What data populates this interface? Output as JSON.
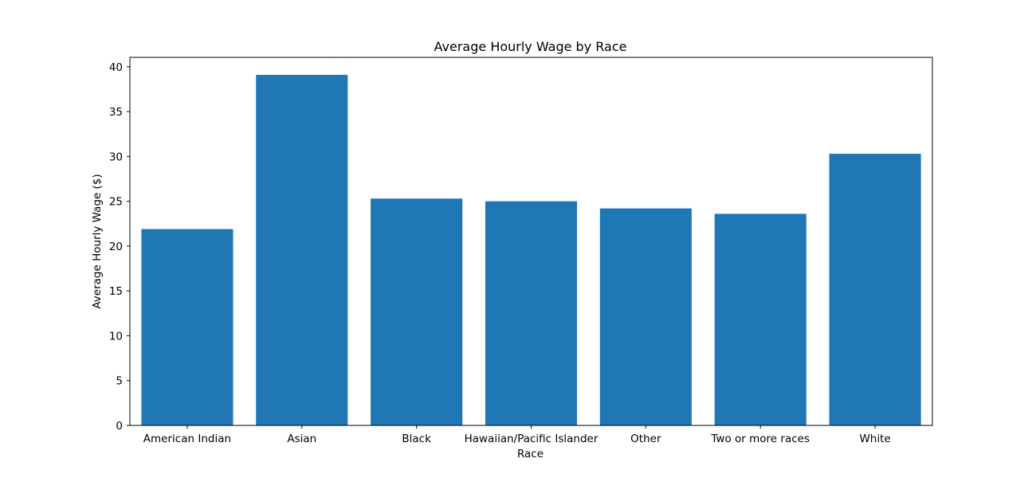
{
  "chart_data": {
    "type": "bar",
    "title": "Average Hourly Wage by Race",
    "xlabel": "Race",
    "ylabel": "Average Hourly Wage ($)",
    "categories": [
      "American Indian",
      "Asian",
      "Black",
      "Hawaiian/Pacific Islander",
      "Other",
      "Two or more races",
      "White"
    ],
    "values": [
      21.9,
      39.1,
      25.3,
      25.0,
      24.2,
      23.6,
      30.3
    ],
    "ylim": [
      0,
      41.05
    ],
    "yticks": [
      0,
      5,
      10,
      15,
      20,
      25,
      30,
      35,
      40
    ],
    "grid": false,
    "legend": "none",
    "colors": {
      "bar": "#1f77b4",
      "axis": "#000000",
      "background": "#ffffff"
    }
  }
}
